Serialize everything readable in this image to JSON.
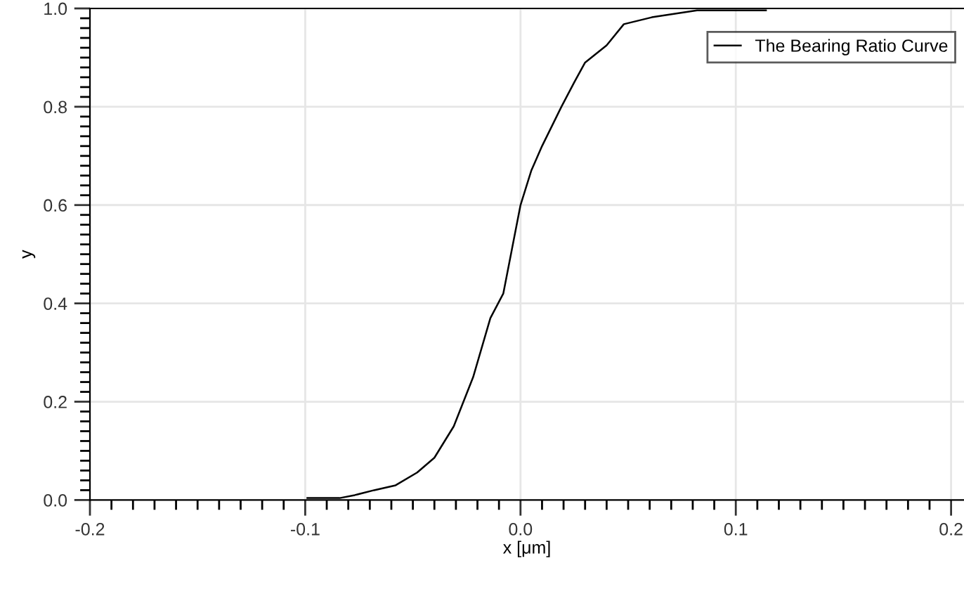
{
  "chart_data": {
    "type": "line",
    "xlabel": "x [μm]",
    "ylabel": "y",
    "series": [
      {
        "name": "The Bearing Ratio Curve",
        "color": "#000000",
        "x": [
          -0.099,
          -0.084,
          -0.077,
          -0.068,
          -0.058,
          -0.048,
          -0.04,
          -0.031,
          -0.022,
          -0.014,
          -0.008,
          -0.004,
          0.0,
          0.005,
          0.01,
          0.019,
          0.025,
          0.03,
          0.04,
          0.048,
          0.061,
          0.082,
          0.114
        ],
        "values": [
          0.004,
          0.004,
          0.01,
          0.02,
          0.03,
          0.056,
          0.086,
          0.15,
          0.25,
          0.37,
          0.42,
          0.51,
          0.6,
          0.67,
          0.72,
          0.8,
          0.85,
          0.89,
          0.925,
          0.968,
          0.982,
          0.996,
          0.996
        ]
      }
    ],
    "xlim": [
      -0.2,
      0.206
    ],
    "ylim": [
      0.0,
      1.0
    ],
    "xticks": [
      -0.2,
      -0.1,
      {
        "value": 0,
        "label": "0.0"
      },
      0.1,
      0.2
    ],
    "yticks": [
      {
        "value": 0,
        "label": "0.0"
      },
      0.2,
      0.4,
      0.6,
      0.8,
      {
        "value": 1,
        "label": "1.0"
      }
    ],
    "grid": true,
    "legend": "top right",
    "marker": "none",
    "line_style": "solid"
  }
}
